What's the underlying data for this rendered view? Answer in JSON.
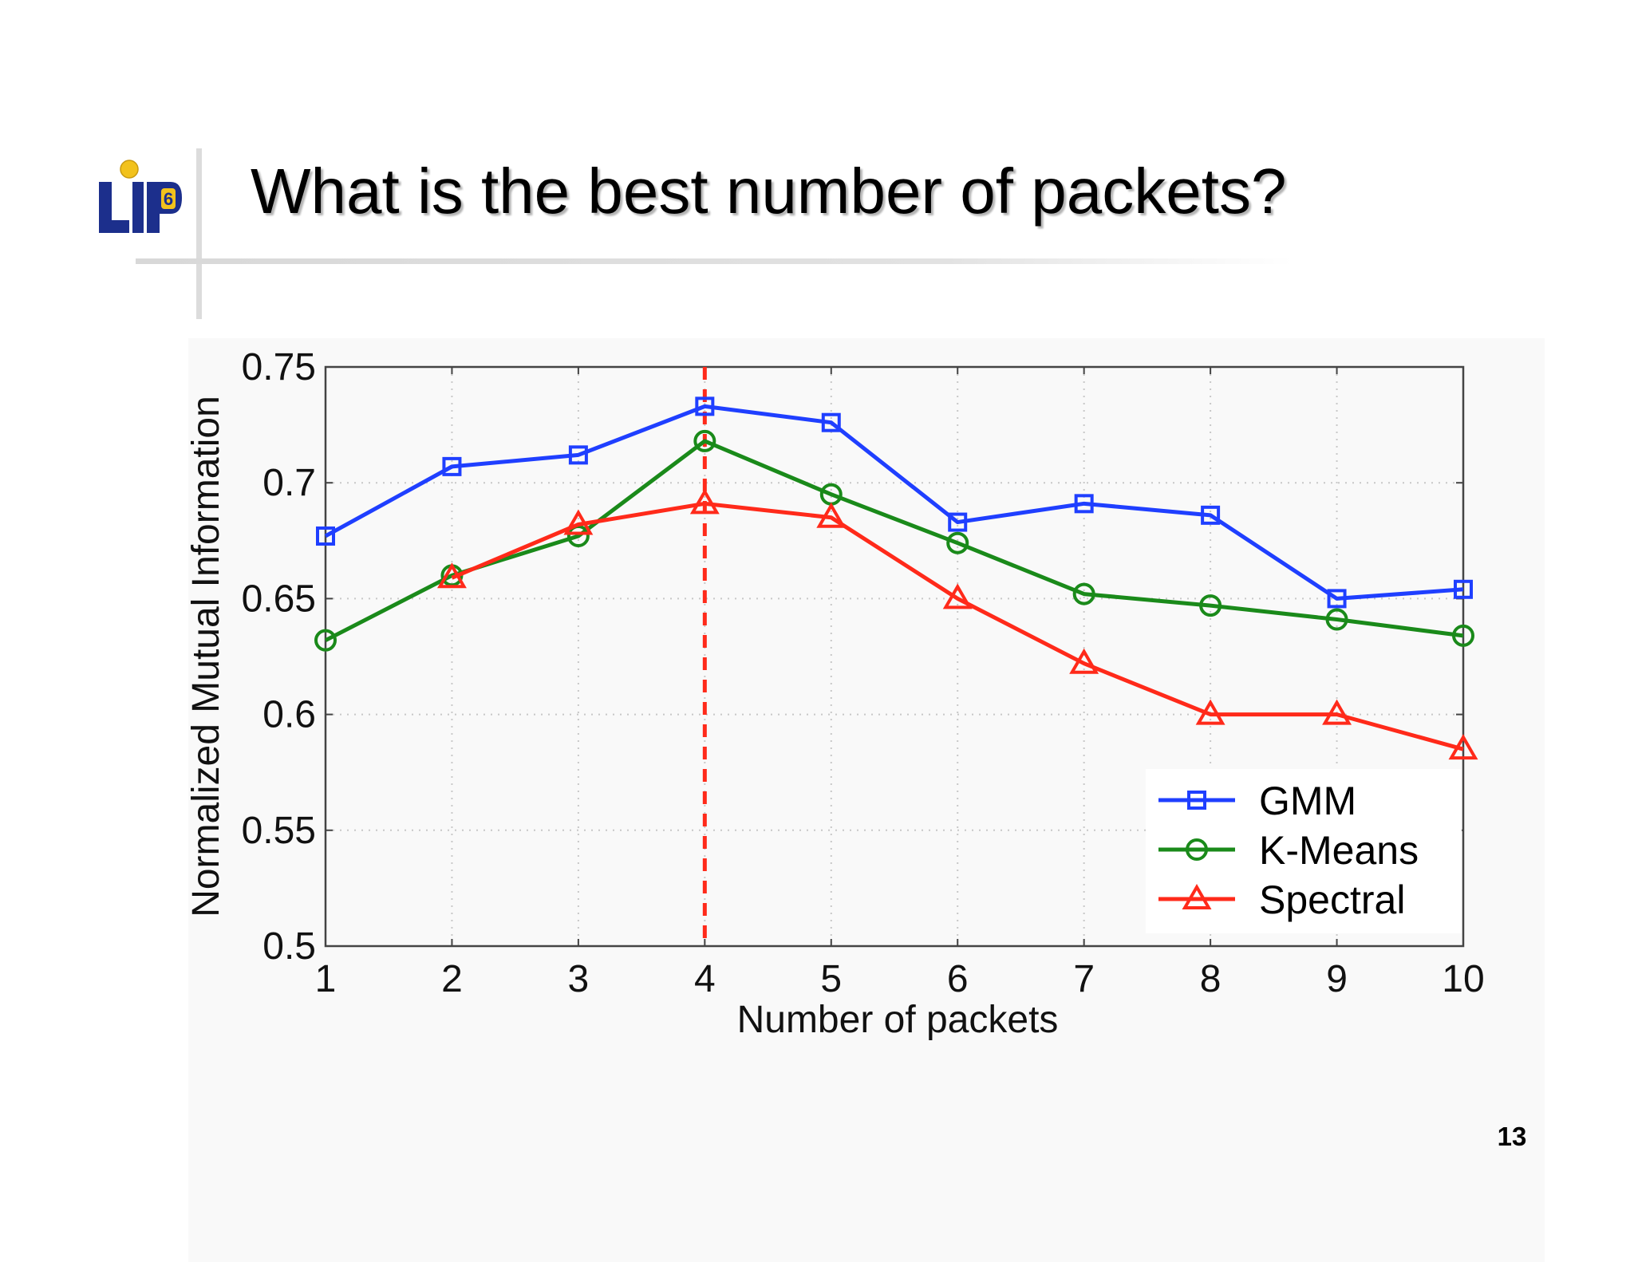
{
  "slide": {
    "title": "What is the best number of packets?",
    "page_number": "13",
    "logo_text": "LIP6"
  },
  "colors": {
    "gmm": "#1f3fff",
    "kmeans": "#1a8a1a",
    "spectral": "#ff2a1a",
    "marker_line": "#ff2a1a"
  },
  "chart_data": {
    "type": "line",
    "title": "",
    "xlabel": "Number of packets",
    "ylabel": "Normalized Mutual Information",
    "x": [
      1,
      2,
      3,
      4,
      5,
      6,
      7,
      8,
      9,
      10
    ],
    "xlim": [
      1,
      10
    ],
    "ylim": [
      0.5,
      0.75
    ],
    "xticks": [
      "1",
      "2",
      "3",
      "4",
      "5",
      "6",
      "7",
      "8",
      "9",
      "10"
    ],
    "yticks": [
      "0.5",
      "0.55",
      "0.6",
      "0.65",
      "0.7",
      "0.75"
    ],
    "grid": true,
    "legend_position": "bottom-right",
    "reference_line": {
      "x": 4,
      "style": "dashed",
      "color": "red"
    },
    "series": [
      {
        "name": "GMM",
        "marker": "square",
        "color": "#1f3fff",
        "values": [
          0.677,
          0.707,
          0.712,
          0.733,
          0.726,
          0.683,
          0.691,
          0.686,
          0.65,
          0.654
        ]
      },
      {
        "name": "K-Means",
        "marker": "circle",
        "color": "#1a8a1a",
        "values": [
          0.632,
          0.66,
          0.677,
          0.718,
          0.695,
          0.674,
          0.652,
          0.647,
          0.641,
          0.634
        ]
      },
      {
        "name": "Spectral",
        "marker": "triangle",
        "color": "#ff2a1a",
        "values": [
          null,
          0.659,
          0.682,
          0.691,
          0.685,
          0.65,
          0.622,
          0.6,
          0.6,
          0.585
        ]
      }
    ]
  }
}
